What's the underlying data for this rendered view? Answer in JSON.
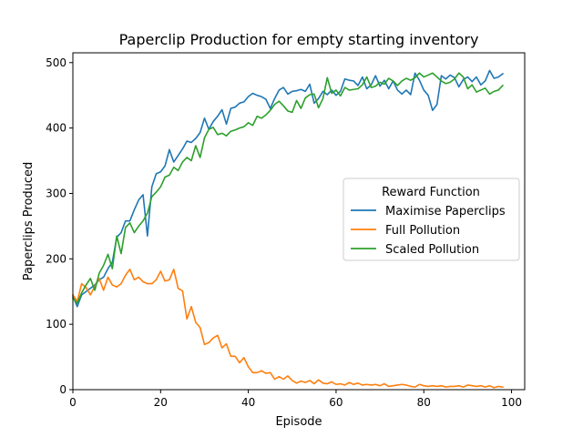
{
  "chart_data": {
    "type": "line",
    "title": "Paperclip Production for empty starting inventory",
    "xlabel": "Episode",
    "ylabel": "Paperclips Produced",
    "xlim": [
      0,
      103
    ],
    "ylim": [
      0,
      515
    ],
    "xticks": [
      0,
      20,
      40,
      60,
      80,
      100
    ],
    "yticks": [
      0,
      100,
      200,
      300,
      400,
      500
    ],
    "grid": false,
    "legend": {
      "title": "Reward Function",
      "placement": "center-right"
    },
    "x": [
      0,
      1,
      2,
      3,
      4,
      5,
      6,
      7,
      8,
      9,
      10,
      11,
      12,
      13,
      14,
      15,
      16,
      17,
      18,
      19,
      20,
      21,
      22,
      23,
      24,
      25,
      26,
      27,
      28,
      29,
      30,
      31,
      32,
      33,
      34,
      35,
      36,
      37,
      38,
      39,
      40,
      41,
      42,
      43,
      44,
      45,
      46,
      47,
      48,
      49,
      50,
      51,
      52,
      53,
      54,
      55,
      56,
      57,
      58,
      59,
      60,
      61,
      62,
      63,
      64,
      65,
      66,
      67,
      68,
      69,
      70,
      71,
      72,
      73,
      74,
      75,
      76,
      77,
      78,
      79,
      80,
      81,
      82,
      83,
      84,
      85,
      86,
      87,
      88,
      89,
      90,
      91,
      92,
      93,
      94,
      95,
      96,
      97,
      98
    ],
    "series": [
      {
        "name": "Maximise Paperclips",
        "color": "#1f77b4",
        "values": [
          143,
          127,
          145,
          150,
          155,
          160,
          168,
          172,
          185,
          195,
          233,
          240,
          258,
          258,
          275,
          290,
          298,
          235,
          310,
          330,
          333,
          342,
          367,
          348,
          358,
          368,
          380,
          378,
          384,
          393,
          415,
          398,
          410,
          418,
          428,
          406,
          430,
          432,
          438,
          440,
          448,
          453,
          450,
          448,
          444,
          430,
          445,
          458,
          462,
          452,
          456,
          457,
          459,
          456,
          467,
          438,
          445,
          456,
          451,
          458,
          450,
          456,
          475,
          473,
          472,
          465,
          478,
          460,
          466,
          480,
          464,
          473,
          460,
          472,
          458,
          452,
          458,
          451,
          484,
          473,
          458,
          450,
          427,
          436,
          480,
          475,
          481,
          477,
          463,
          474,
          478,
          471,
          478,
          466,
          472,
          488,
          476,
          478,
          483
        ]
      },
      {
        "name": "Full Pollution",
        "color": "#ff7f0e",
        "values": [
          145,
          135,
          162,
          156,
          145,
          158,
          170,
          152,
          172,
          160,
          157,
          162,
          175,
          184,
          168,
          172,
          165,
          162,
          162,
          168,
          181,
          166,
          168,
          184,
          155,
          151,
          108,
          127,
          103,
          95,
          69,
          72,
          79,
          83,
          64,
          70,
          51,
          51,
          41,
          49,
          35,
          26,
          26,
          29,
          25,
          26,
          16,
          20,
          16,
          21,
          14,
          10,
          13,
          11,
          14,
          9,
          15,
          10,
          9,
          12,
          8,
          9,
          7,
          11,
          8,
          10,
          7,
          8,
          7,
          8,
          6,
          9,
          5,
          6,
          7,
          8,
          7,
          5,
          4,
          8,
          6,
          5,
          6,
          5,
          6,
          4,
          5,
          5,
          6,
          4,
          7,
          6,
          5,
          6,
          4,
          6,
          3,
          5,
          4
        ]
      },
      {
        "name": "Scaled Pollution",
        "color": "#2ca02c",
        "values": [
          140,
          132,
          148,
          160,
          170,
          152,
          178,
          190,
          207,
          185,
          235,
          208,
          248,
          255,
          240,
          250,
          258,
          270,
          295,
          302,
          310,
          325,
          328,
          340,
          335,
          348,
          355,
          350,
          373,
          355,
          385,
          398,
          401,
          390,
          392,
          388,
          395,
          397,
          400,
          402,
          408,
          404,
          418,
          415,
          420,
          427,
          436,
          441,
          434,
          426,
          424,
          442,
          430,
          446,
          451,
          452,
          431,
          445,
          477,
          453,
          458,
          449,
          462,
          458,
          459,
          460,
          466,
          478,
          462,
          464,
          470,
          467,
          476,
          472,
          465,
          472,
          476,
          473,
          477,
          484,
          478,
          481,
          484,
          478,
          472,
          468,
          470,
          475,
          484,
          478,
          460,
          466,
          455,
          458,
          461,
          452,
          456,
          458,
          465
        ]
      }
    ]
  }
}
